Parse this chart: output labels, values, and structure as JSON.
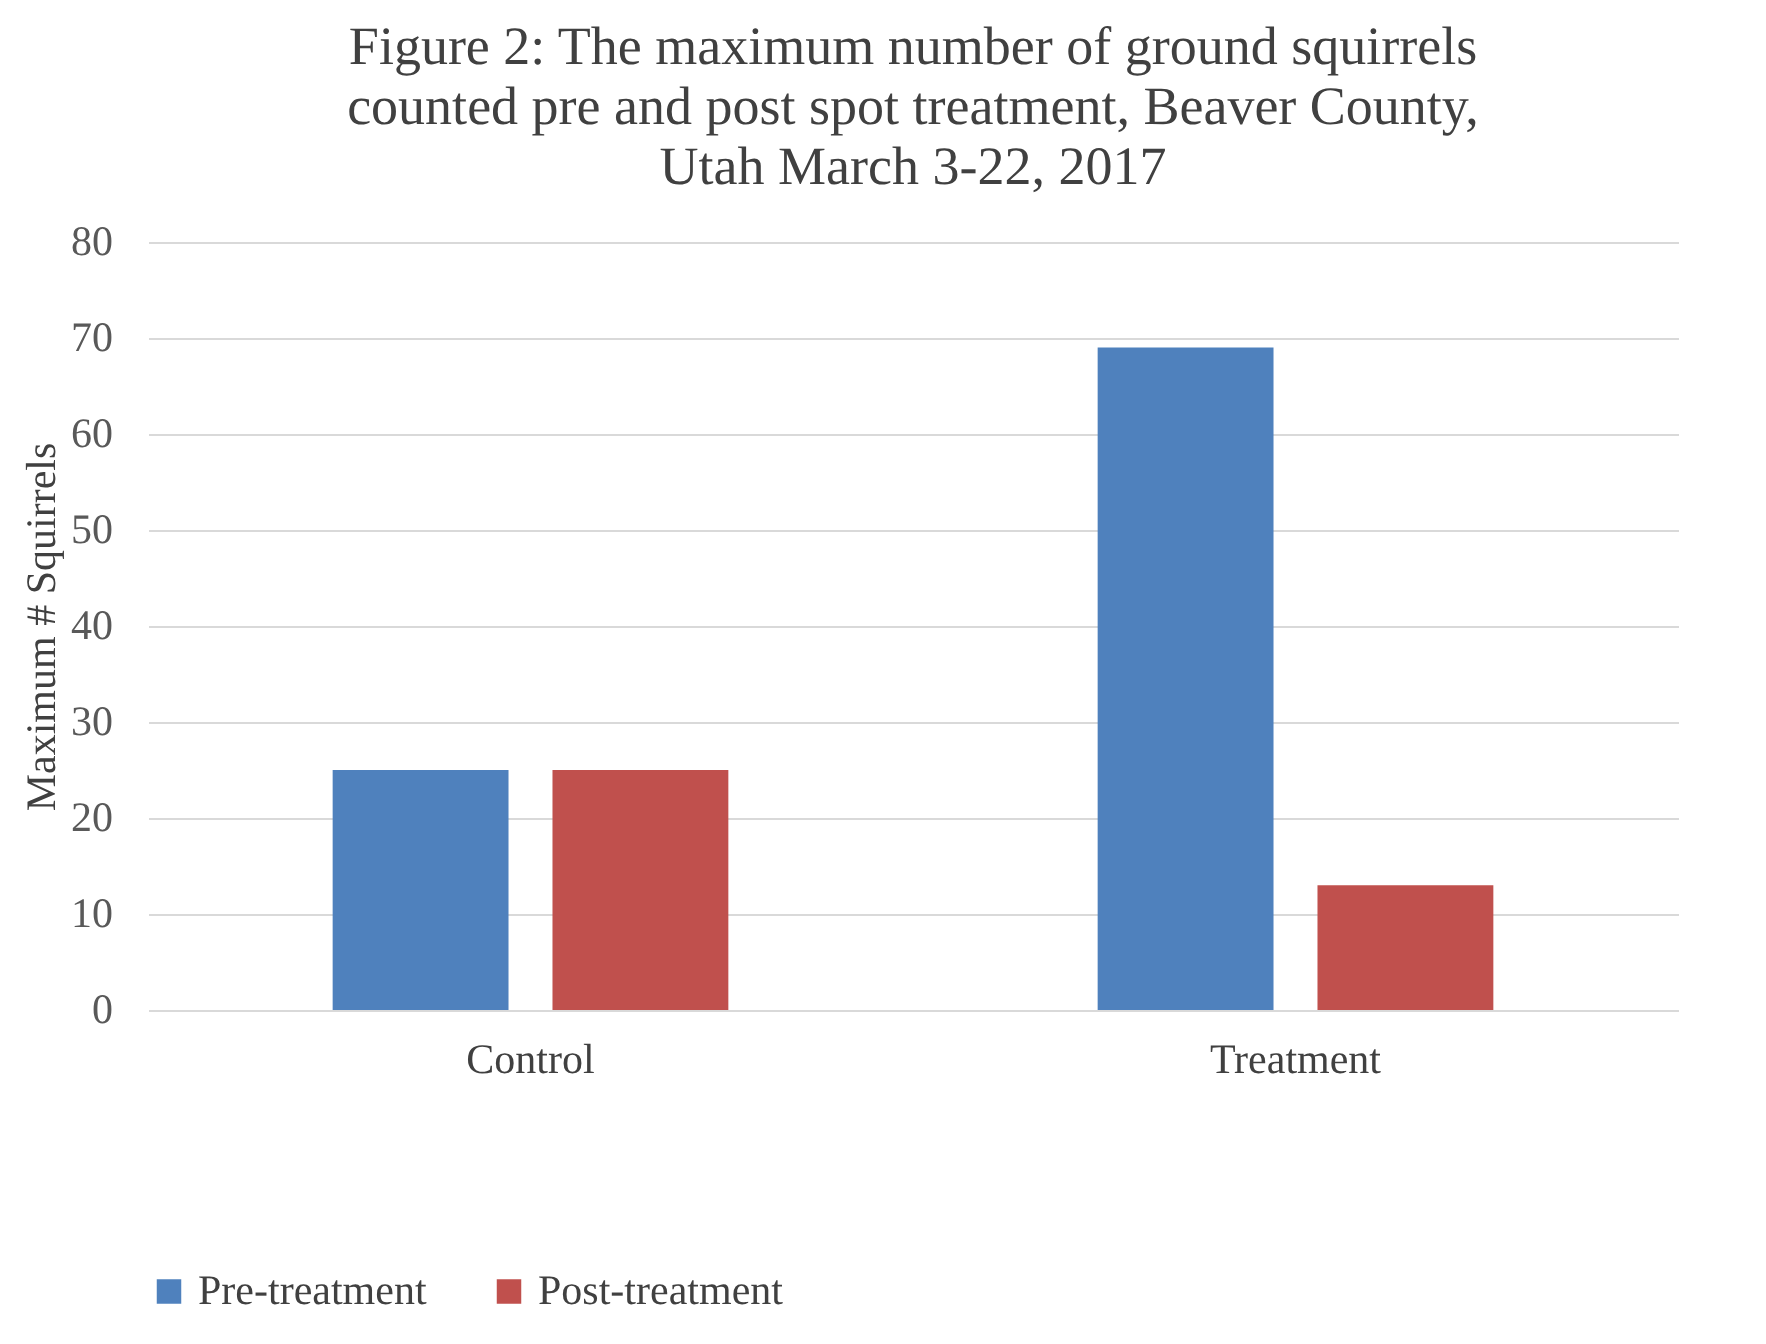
{
  "chart_data": {
    "type": "bar",
    "title": "Figure 2: The maximum number of ground squirrels counted pre and post spot treatment, Beaver County, Utah March 3-22, 2017",
    "ylabel": "Maximum # Squirrels",
    "categories": [
      "Control",
      "Treatment"
    ],
    "series": [
      {
        "name": "Pre-treatment",
        "color": "#4f81bd",
        "values": [
          25,
          69
        ]
      },
      {
        "name": "Post-treatment",
        "color": "#c0504d",
        "values": [
          25,
          13
        ]
      }
    ],
    "ylim": [
      0,
      80
    ],
    "yticks": [
      0,
      10,
      20,
      30,
      40,
      50,
      60,
      70,
      80
    ],
    "grid": "y",
    "legend": "bottom"
  }
}
